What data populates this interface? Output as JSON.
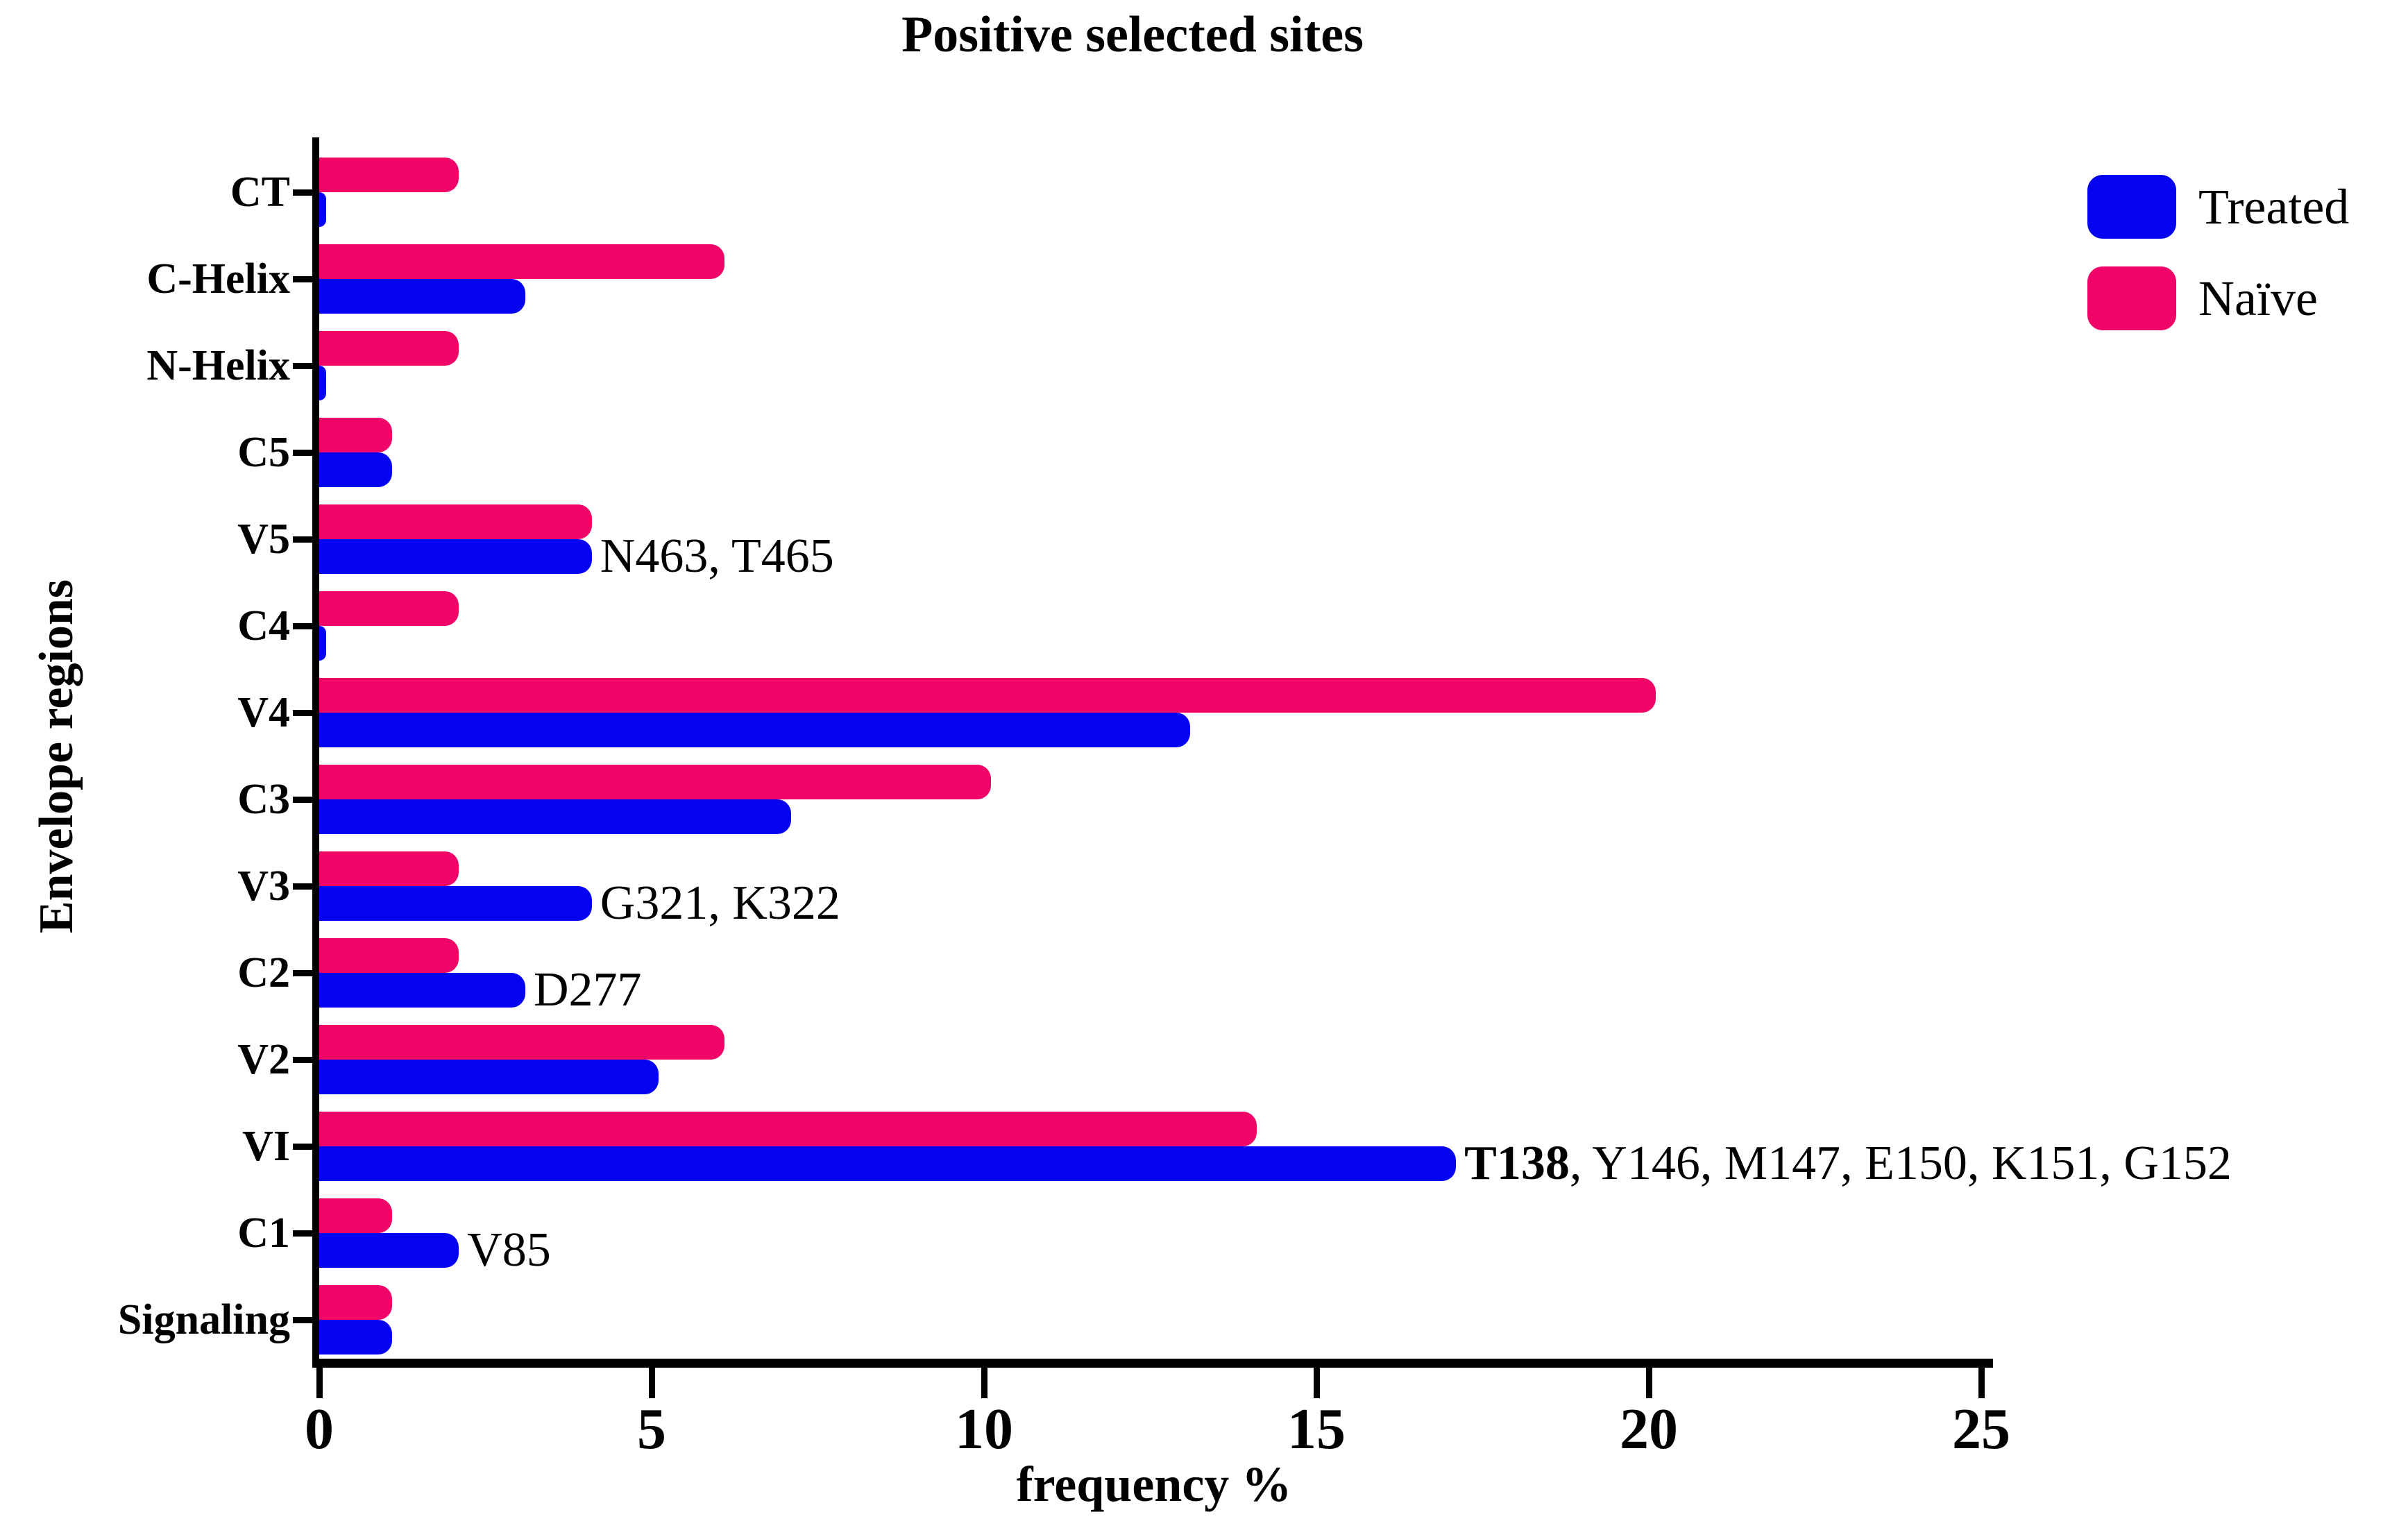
{
  "title": "Positive selected sites",
  "x_axis": {
    "label": "frequency %",
    "ticks": [
      "0",
      "5",
      "10",
      "15",
      "20",
      "25"
    ]
  },
  "y_axis": {
    "label": "Envelope regions"
  },
  "legend": {
    "items": [
      {
        "label": "Treated",
        "color": "#0502F2"
      },
      {
        "label": "Naïve",
        "color": "#F00468"
      }
    ],
    "position": "top-right"
  },
  "chart_data": {
    "type": "bar",
    "orientation": "horizontal",
    "title": "Positive selected sites",
    "xlabel": "frequency %",
    "ylabel": "Envelope regions",
    "xlim": [
      0,
      25
    ],
    "x_tick_step": 5,
    "grid": false,
    "bar_order_top_to_bottom_in_group": [
      "Naïve",
      "Treated"
    ],
    "categories_top_to_bottom": [
      "CT",
      "C-Helix",
      "N-Helix",
      "C5",
      "V5",
      "C4",
      "V4",
      "C3",
      "V3",
      "C2",
      "V2",
      "VI",
      "C1",
      "Signaling"
    ],
    "series": [
      {
        "name": "Treated",
        "color": "#0502F2",
        "values": [
          0.1,
          3.1,
          0.1,
          1.1,
          4.1,
          0.1,
          13.1,
          7.1,
          4.1,
          3.1,
          5.1,
          17.1,
          2.1,
          1.1
        ]
      },
      {
        "name": "Naïve",
        "color": "#F00468",
        "values": [
          2.1,
          6.1,
          2.1,
          1.1,
          4.1,
          2.1,
          20.1,
          10.1,
          2.1,
          2.1,
          6.1,
          14.1,
          1.1,
          1.1
        ]
      }
    ],
    "annotations": [
      {
        "category": "V5",
        "segments": [
          {
            "text": "N463, T465",
            "bold": false
          }
        ]
      },
      {
        "category": "V3",
        "segments": [
          {
            "text": "G321, K322",
            "bold": false
          }
        ]
      },
      {
        "category": "C2",
        "segments": [
          {
            "text": "D277",
            "bold": false
          }
        ]
      },
      {
        "category": "VI",
        "segments": [
          {
            "text": "T138",
            "bold": true
          },
          {
            "text": ", Y146, M147, E150, K151, G152",
            "bold": false
          }
        ]
      },
      {
        "category": "C1",
        "segments": [
          {
            "text": "V85",
            "bold": false
          }
        ]
      }
    ]
  }
}
